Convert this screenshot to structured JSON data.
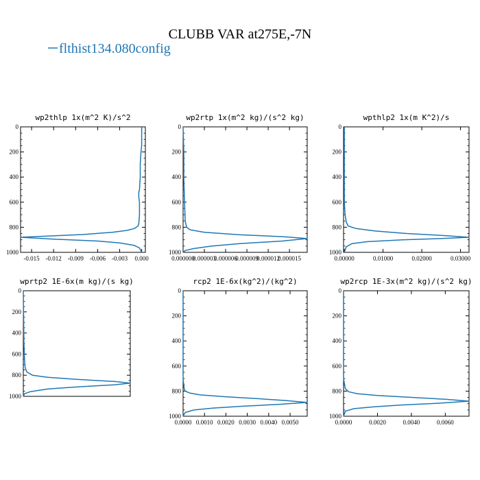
{
  "figure": {
    "title": "CLUBB VAR at275E,-7N",
    "legend_label": "flthist134.080config",
    "line_color": "#1f77b4"
  },
  "chart_data": [
    {
      "type": "line",
      "title": "wp2thlp 1x(m^2 K)/s^2",
      "xlim": [
        -0.0165,
        0.0005
      ],
      "ylim": [
        1000,
        0
      ],
      "xticks": [
        "-0.015",
        "-0.012",
        "-0.009",
        "-0.006",
        "-0.003",
        "0.000"
      ],
      "xtick_values": [
        -0.015,
        -0.012,
        -0.009,
        -0.006,
        -0.003,
        0.0
      ],
      "yticks": [
        "0",
        "200",
        "400",
        "600",
        "800",
        "1000"
      ],
      "ytick_values": [
        0,
        200,
        400,
        600,
        800,
        1000
      ],
      "series": [
        {
          "x": [
            0.0,
            0.0,
            -0.0001,
            -0.0002,
            -0.0002,
            -0.0003,
            -0.0004,
            -0.0004,
            -0.0003,
            -0.0003,
            -0.0004,
            -0.0005,
            -0.001,
            -0.002,
            -0.004,
            -0.008,
            -0.0165,
            -0.012,
            -0.006,
            -0.003,
            -0.001,
            -0.0003,
            0.0
          ],
          "y": [
            0,
            150,
            200,
            300,
            400,
            500,
            520,
            560,
            600,
            700,
            770,
            790,
            810,
            825,
            840,
            858,
            880,
            895,
            910,
            925,
            945,
            965,
            1000
          ]
        }
      ]
    },
    {
      "type": "line",
      "title": "wp2rtp 1x(m^2 kg)/(s^2 kg)",
      "xlim": [
        0.0,
        1.75e-05
      ],
      "ylim": [
        1000,
        0
      ],
      "xticks": [
        "0.000000",
        "0.000003",
        "0.000006",
        "0.000009",
        "0.000012",
        "0.000015"
      ],
      "xtick_values": [
        0.0,
        3e-06,
        6e-06,
        9e-06,
        1.2e-05,
        1.5e-05
      ],
      "yticks": [
        "0",
        "200",
        "400",
        "600",
        "800",
        "1000"
      ],
      "ytick_values": [
        0,
        200,
        400,
        600,
        800,
        1000
      ],
      "series": [
        {
          "x": [
            0.0,
            1e-07,
            1e-07,
            2e-07,
            3e-07,
            5e-07,
            1e-06,
            3e-06,
            8e-06,
            1.4e-05,
            1.75e-05,
            1.4e-05,
            8e-06,
            4e-06,
            1.5e-06,
            3e-07,
            0.0
          ],
          "y": [
            0,
            200,
            400,
            600,
            750,
            800,
            820,
            840,
            860,
            875,
            890,
            910,
            930,
            950,
            970,
            985,
            1000
          ]
        }
      ]
    },
    {
      "type": "line",
      "title": "wpthlp2 1x(m K^2)/s",
      "xlim": [
        -0.0002,
        0.0322
      ],
      "ylim": [
        1000,
        0
      ],
      "xticks": [
        "0.00000",
        "0.01000",
        "0.02000",
        "0.03000"
      ],
      "xtick_values": [
        0.0,
        0.01,
        0.02,
        0.03
      ],
      "yticks": [
        "0",
        "200",
        "400",
        "600",
        "800",
        "1000"
      ],
      "ytick_values": [
        0,
        200,
        400,
        600,
        800,
        1000
      ],
      "series": [
        {
          "x": [
            0.0,
            0.0,
            0.0002,
            0.0005,
            0.001,
            0.003,
            0.008,
            0.016,
            0.025,
            0.0322,
            0.025,
            0.015,
            0.006,
            0.002,
            0.0005,
            0.0
          ],
          "y": [
            0,
            600,
            700,
            760,
            790,
            810,
            830,
            850,
            865,
            880,
            890,
            900,
            915,
            930,
            955,
            1000
          ]
        }
      ]
    },
    {
      "type": "line",
      "title": "wprtp2 1E-6x(m kg)/(s kg)",
      "xlim": [
        0.0,
        0.000175
      ],
      "ylim": [
        1000,
        0
      ],
      "xticks": [],
      "xtick_values": [],
      "yticks": [
        "0",
        "200",
        "400",
        "600",
        "800",
        "1000"
      ],
      "ytick_values": [
        0,
        200,
        400,
        600,
        800,
        1000
      ],
      "series": [
        {
          "x": [
            0.0,
            1e-06,
            2e-06,
            3e-06,
            6e-06,
            1.5e-05,
            4e-05,
            9e-05,
            0.00015,
            0.000175,
            0.00015,
            9e-05,
            4e-05,
            1.2e-05,
            2e-06,
            0.0
          ],
          "y": [
            0,
            500,
            650,
            730,
            770,
            800,
            820,
            840,
            860,
            875,
            890,
            910,
            930,
            955,
            975,
            1000
          ]
        }
      ]
    },
    {
      "type": "line",
      "title": "rcp2 1E-6x(kg^2)/(kg^2)",
      "xlim": [
        0.0,
        0.0058
      ],
      "ylim": [
        1000,
        0
      ],
      "xticks": [
        "0.0000",
        "0.0010",
        "0.0020",
        "0.0030",
        "0.0040",
        "0.0050"
      ],
      "xtick_values": [
        0.0,
        0.001,
        0.002,
        0.003,
        0.004,
        0.005
      ],
      "yticks": [
        "0",
        "200",
        "400",
        "600",
        "800",
        "1000"
      ],
      "ytick_values": [
        0,
        200,
        400,
        600,
        800,
        1000
      ],
      "series": [
        {
          "x": [
            0.0,
            0.0,
            5e-05,
            0.0001,
            0.0003,
            0.0008,
            0.002,
            0.0035,
            0.0048,
            0.0058,
            0.0045,
            0.0028,
            0.0014,
            0.0005,
            0.0001,
            0.0
          ],
          "y": [
            0,
            700,
            780,
            800,
            815,
            830,
            845,
            860,
            875,
            890,
            905,
            920,
            935,
            950,
            970,
            1000
          ]
        }
      ]
    },
    {
      "type": "line",
      "title": "wp2rcp 1E-3x(m^2 kg)/(s^2 kg)",
      "xlim": [
        0.0,
        0.0074
      ],
      "ylim": [
        1000,
        0
      ],
      "xticks": [
        "0.0000",
        "0.0020",
        "0.0040",
        "0.0060"
      ],
      "xtick_values": [
        0.0,
        0.002,
        0.004,
        0.006
      ],
      "yticks": [
        "0",
        "200",
        "400",
        "600",
        "800",
        "1000"
      ],
      "ytick_values": [
        0,
        200,
        400,
        600,
        800,
        1000
      ],
      "series": [
        {
          "x": [
            0.0,
            0.0,
            0.0001,
            0.0003,
            0.0008,
            0.002,
            0.004,
            0.006,
            0.0074,
            0.0058,
            0.0035,
            0.0018,
            0.0006,
            0.0001,
            0.0
          ],
          "y": [
            0,
            700,
            780,
            805,
            820,
            835,
            850,
            865,
            880,
            895,
            910,
            925,
            940,
            960,
            1000
          ]
        }
      ]
    }
  ]
}
